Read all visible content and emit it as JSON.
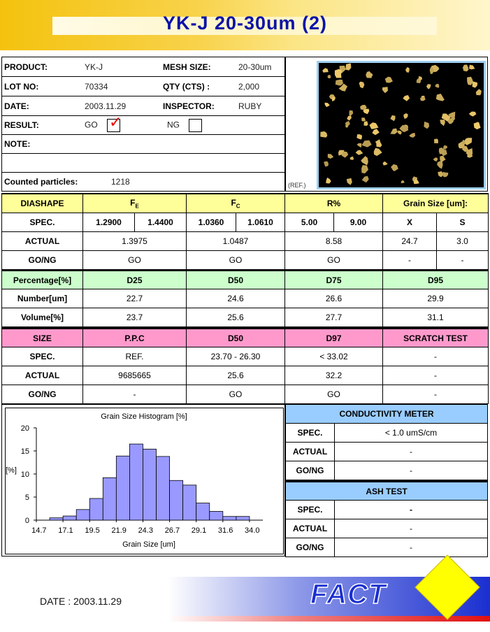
{
  "header": {
    "title": "YK-J 20-30um (2)"
  },
  "info": {
    "product_label": "PRODUCT:",
    "product": "YK-J",
    "mesh_label": "MESH SIZE:",
    "mesh": "20-30um",
    "lot_label": "LOT NO:",
    "lot": "70334",
    "qty_label": "QTY (CTS) :",
    "qty": "2,000",
    "date_label": "DATE:",
    "date": "2003.11.29",
    "inspector_label": "INSPECTOR:",
    "inspector": "RUBY",
    "result_label": "RESULT:",
    "go_label": "GO",
    "ng_label": "NG",
    "go_checked": true,
    "note_label": "NOTE:",
    "counted_label": "Counted particles:",
    "counted": "1218",
    "ref_label": "(REF.)"
  },
  "table1": {
    "h": [
      "DIASHAPE",
      "F",
      "F",
      "R%",
      "Grain Size [um]:"
    ],
    "h_sub": [
      "E",
      "C"
    ],
    "spec_label": "SPEC.",
    "spec": [
      "1.2900",
      "1.4400",
      "1.0360",
      "1.0610",
      "5.00",
      "9.00",
      "X",
      "S"
    ],
    "actual_label": "ACTUAL",
    "actual": [
      "1.3975",
      "1.0487",
      "8.58",
      "24.7",
      "3.0"
    ],
    "gong_label": "GO/NG",
    "gong": [
      "GO",
      "GO",
      "GO",
      "-",
      "-"
    ]
  },
  "table2": {
    "h": [
      "Percentage[%]",
      "D25",
      "D50",
      "D75",
      "D95"
    ],
    "number_label": "Number[um]",
    "number": [
      "22.7",
      "24.6",
      "26.6",
      "29.9"
    ],
    "volume_label": "Volume[%]",
    "volume": [
      "23.7",
      "25.6",
      "27.7",
      "31.1"
    ]
  },
  "table3": {
    "h": [
      "SIZE",
      "P.P.C",
      "D50",
      "D97",
      "SCRATCH TEST"
    ],
    "spec_label": "SPEC.",
    "spec": [
      "REF.",
      "23.70 - 26.30",
      "< 33.02",
      "-"
    ],
    "actual_label": "ACTUAL",
    "actual": [
      "9685665",
      "25.6",
      "32.2",
      "-"
    ],
    "gong_label": "GO/NG",
    "gong": [
      "-",
      "GO",
      "GO",
      "-"
    ]
  },
  "conductivity": {
    "title": "CONDUCTIVITY METER",
    "spec_label": "SPEC.",
    "spec": "< 1.0 umS/cm",
    "actual_label": "ACTUAL",
    "actual": "-",
    "gong_label": "GO/NG",
    "gong": "-"
  },
  "ash": {
    "title": "ASH TEST",
    "spec_label": "SPEC.",
    "spec": "-",
    "actual_label": "ACTUAL",
    "actual": "-",
    "gong_label": "GO/NG",
    "gong": "-"
  },
  "chart_data": {
    "type": "bar",
    "title": "Grain Size Histogram [%]",
    "xlabel": "Grain Size [um]",
    "ylabel": "[%]",
    "ylim": [
      0,
      20
    ],
    "yticks": [
      0,
      5,
      10,
      15,
      20
    ],
    "xtick_labels": [
      "14.7",
      "17.1",
      "19.5",
      "21.9",
      "24.3",
      "26.7",
      "29.1",
      "31.6",
      "34.0"
    ],
    "values": [
      0,
      0.5,
      0.9,
      2.3,
      4.7,
      9.2,
      13.9,
      16.5,
      15.4,
      13.8,
      8.6,
      7.6,
      3.7,
      1.9,
      0.8,
      0.8,
      0
    ],
    "color": "#9999ff",
    "grid": false
  },
  "footer": {
    "date": "DATE : 2003.11.29",
    "logo": "FACT"
  },
  "colors": {
    "title": "#0a12a8",
    "yellow_header": "#ffff99",
    "green_header": "#ccffcc",
    "pink_header": "#ff99cc",
    "blue_header": "#99ccff",
    "check": "#e00000"
  }
}
